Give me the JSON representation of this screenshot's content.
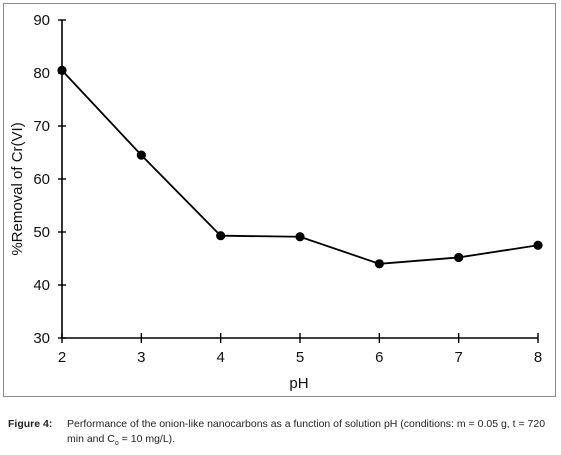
{
  "chart_data": {
    "type": "line",
    "title": "",
    "xlabel": "pH",
    "ylabel": "%Removal of Cr(VI)",
    "x": [
      2,
      3,
      4,
      5,
      6,
      7,
      8
    ],
    "series": [
      {
        "values": [
          80.5,
          64.5,
          49.3,
          49.1,
          44.0,
          45.2,
          47.5
        ]
      }
    ],
    "xlim": [
      2,
      8
    ],
    "ylim": [
      30,
      90
    ],
    "xticks": [
      "2",
      "3",
      "4",
      "5",
      "6",
      "7",
      "8"
    ],
    "yticks": [
      "30",
      "40",
      "50",
      "60",
      "70",
      "80",
      "90"
    ],
    "grid": false,
    "line_color": "#000000",
    "marker_color": "#000000"
  },
  "caption": {
    "label": "Figure 4:",
    "text_part1": "Performance of the onion-like nanocarbons as a function of solution pH (conditions: m = 0.05 g, t = 720 min and C",
    "subscript": "o",
    "text_part2": " = 10 mg/L)."
  }
}
